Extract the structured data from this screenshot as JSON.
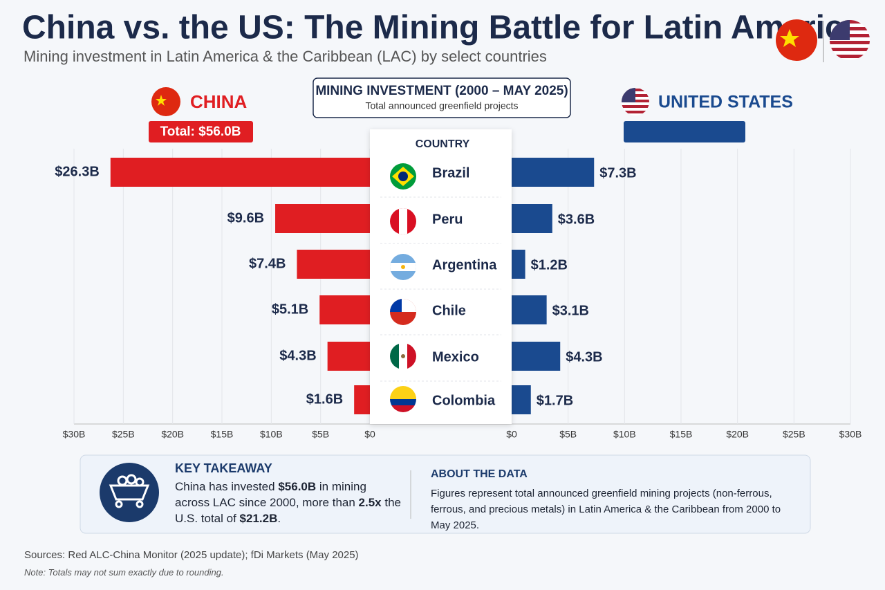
{
  "title": "China vs. the US: The Mining Battle for Latin America",
  "subtitle": "Mining investment in Latin America & the Caribbean (LAC) by select countries",
  "chart_data": {
    "type": "butterfly",
    "header": "MINING INVESTMENT (2000 – MAY 2025)",
    "subheader": "Total announced greenfield projects",
    "category_label": "COUNTRY",
    "categories": [
      "Brazil",
      "Peru",
      "Argentina",
      "Chile",
      "Mexico",
      "Colombia"
    ],
    "series": [
      {
        "name": "CHINA",
        "color": "#e01e22",
        "total_label": "Total: $56.0B",
        "values": [
          26.3,
          9.6,
          7.4,
          5.1,
          4.3,
          1.6
        ],
        "value_labels": [
          "$26.3B",
          "$9.6B",
          "$7.4B",
          "$5.1B",
          "$4.3B",
          "$1.6B"
        ]
      },
      {
        "name": "UNITED STATES",
        "color": "#1a4a8f",
        "values": [
          7.3,
          3.6,
          1.2,
          3.1,
          4.3,
          1.7
        ],
        "value_labels": [
          "$7.3B",
          "$3.6B",
          "$1.2B",
          "$3.1B",
          "$4.3B",
          "$1.7B"
        ]
      }
    ],
    "xlim": [
      0,
      30
    ],
    "xticks": [
      {
        "value": 0,
        "label": "$0"
      },
      {
        "value": 5,
        "label": "$5B"
      },
      {
        "value": 10,
        "label": "$10B"
      },
      {
        "value": 15,
        "label": "$15B"
      },
      {
        "value": 20,
        "label": "$20B"
      },
      {
        "value": 25,
        "label": "$25B"
      },
      {
        "value": 30,
        "label": "$30B"
      }
    ],
    "grid": true
  },
  "takeaway": {
    "title": "KEY TAKEAWAY",
    "body": [
      "China has invested ",
      "$56.0B",
      " in mining across LAC since 2000, more than ",
      "2.5x",
      " the U.S. total of ",
      "$21.2B",
      "."
    ]
  },
  "about": {
    "title": "ABOUT THE DATA",
    "body": "Figures represent total announced greenfield mining projects (non-ferrous, ferrous, and precious metals) in Latin America & the Caribbean from 2000 to May 2025."
  },
  "sources": "Sources: Red ALC-China Monitor (2025 update); fDi Markets (May 2025)",
  "note": "Note: Totals may not sum exactly due to rounding."
}
